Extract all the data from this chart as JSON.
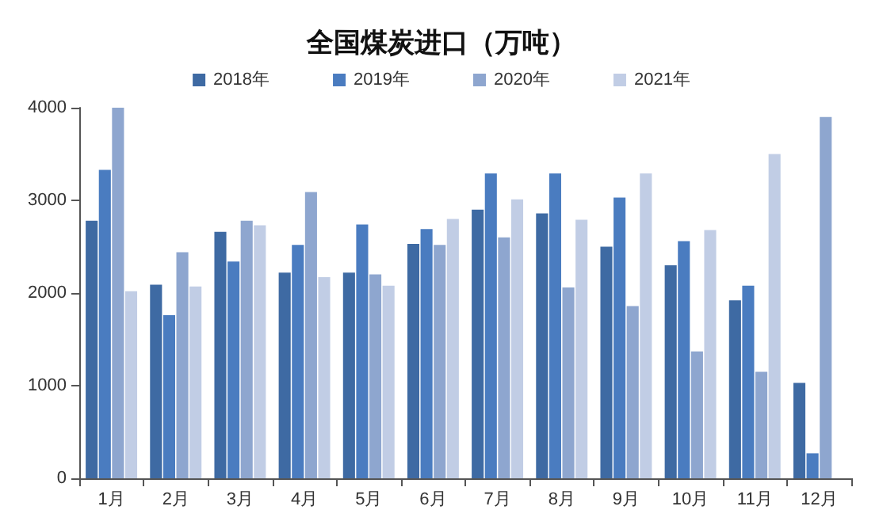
{
  "chart_data": {
    "type": "bar",
    "title": "全国煤炭进口（万吨）",
    "categories": [
      "1月",
      "2月",
      "3月",
      "4月",
      "5月",
      "6月",
      "7月",
      "8月",
      "9月",
      "10月",
      "11月",
      "12月"
    ],
    "series": [
      {
        "name": "2018年",
        "color": "#3e6aa3",
        "values": [
          2780,
          2090,
          2660,
          2220,
          2220,
          2530,
          2900,
          2860,
          2500,
          2300,
          1920,
          1030
        ]
      },
      {
        "name": "2019年",
        "color": "#4a7cc0",
        "values": [
          3330,
          1760,
          2340,
          2520,
          2740,
          2690,
          3290,
          3290,
          3030,
          2560,
          2080,
          270
        ]
      },
      {
        "name": "2020年",
        "color": "#8ea6cf",
        "values": [
          4000,
          2440,
          2780,
          3090,
          2200,
          2520,
          2600,
          2060,
          1860,
          1370,
          1150,
          3900
        ]
      },
      {
        "name": "2021年",
        "color": "#c1cde5",
        "values": [
          2020,
          2070,
          2730,
          2170,
          2080,
          2800,
          3010,
          2790,
          3290,
          2680,
          3500,
          null
        ]
      }
    ],
    "ylim": [
      0,
      4000
    ],
    "yticks": [
      0,
      1000,
      2000,
      3000,
      4000
    ],
    "grid": false,
    "legend": "top"
  }
}
